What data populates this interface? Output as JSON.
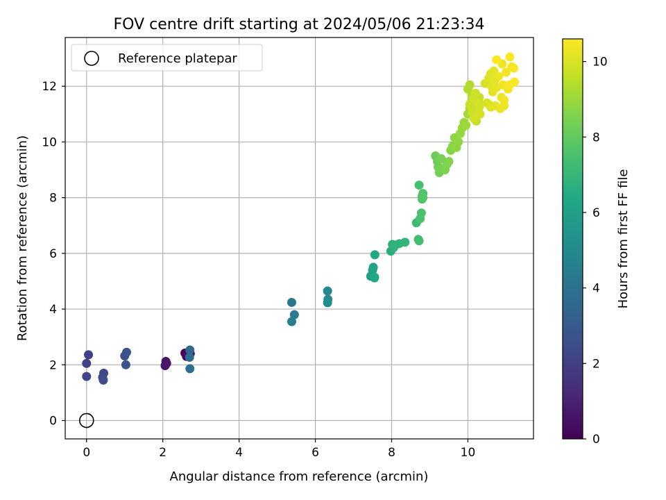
{
  "chart_data": {
    "type": "scatter",
    "title": "FOV centre drift starting at 2024/05/06 21:23:34",
    "xlabel": "Angular distance from reference (arcmin)",
    "ylabel": "Rotation from reference (arcmin)",
    "xlim": [
      -0.56,
      11.72
    ],
    "ylim": [
      -0.66,
      13.75
    ],
    "xticks": [
      0,
      2,
      4,
      6,
      8,
      10
    ],
    "yticks": [
      0,
      2,
      4,
      6,
      8,
      10,
      12
    ],
    "grid": true,
    "legend": {
      "position": "upper-left",
      "entries": [
        "Reference platepar"
      ]
    },
    "colorbar": {
      "label": "Hours from first FF file",
      "colormap": "viridis",
      "range": [
        0,
        10.6
      ],
      "ticks": [
        0,
        2,
        4,
        6,
        8,
        10
      ]
    },
    "reference_point": {
      "x": 0,
      "y": 0,
      "label": "Reference platepar"
    },
    "series": [
      {
        "x": [
          2.58,
          2.62,
          2.6,
          2.68,
          2.72,
          2.08,
          2.06,
          2.1,
          0.05,
          0.0,
          0.0,
          0.45,
          0.42,
          0.44,
          1.0,
          1.05,
          1.03,
          2.71,
          2.7,
          2.71
        ],
        "y": [
          2.42,
          2.3,
          2.4,
          2.3,
          2.4,
          2.12,
          1.97,
          2.05,
          2.36,
          2.05,
          1.58,
          1.7,
          1.55,
          1.45,
          2.32,
          2.45,
          2.0,
          2.53,
          2.27,
          1.86
        ],
        "c": [
          0.1,
          0.15,
          0.2,
          0.3,
          0.4,
          0.5,
          0.6,
          0.7,
          2.0,
          2.1,
          2.2,
          2.3,
          2.4,
          2.5,
          2.6,
          2.7,
          2.8,
          3.6,
          3.7,
          3.8
        ]
      },
      {
        "x": [
          5.38,
          5.45,
          5.38,
          6.32,
          6.33,
          6.32,
          7.45,
          7.5,
          7.52,
          7.55,
          7.55,
          7.56
        ],
        "y": [
          4.24,
          3.8,
          3.55,
          4.65,
          4.35,
          4.23,
          5.18,
          5.4,
          5.5,
          5.12,
          5.15,
          5.95
        ],
        "c": [
          4.3,
          4.4,
          4.5,
          4.9,
          5.0,
          5.1,
          5.9,
          6.0,
          6.1,
          6.2,
          6.3,
          6.35
        ]
      },
      {
        "x": [
          7.98,
          8.02,
          8.05,
          8.1,
          8.2,
          8.35,
          8.65,
          8.7,
          8.72,
          8.72,
          8.75,
          8.78,
          8.8,
          8.8,
          8.82,
          8.82
        ],
        "y": [
          6.08,
          6.32,
          6.2,
          6.3,
          6.35,
          6.4,
          7.1,
          6.5,
          6.45,
          8.45,
          7.25,
          7.45,
          7.95,
          8.05,
          8.15,
          8.0
        ],
        "c": [
          6.6,
          6.7,
          6.75,
          6.8,
          6.85,
          6.9,
          7.2,
          7.3,
          7.35,
          7.4,
          7.5,
          7.55,
          7.6,
          7.65,
          7.7,
          7.75
        ]
      },
      {
        "x": [
          9.15,
          9.2,
          9.22,
          9.25,
          9.3,
          9.35,
          9.4,
          9.45,
          9.5,
          9.55,
          9.6,
          9.65,
          9.7,
          9.75,
          9.8,
          9.85,
          9.9,
          9.95,
          10.0,
          10.05
        ],
        "y": [
          9.5,
          9.3,
          9.1,
          8.9,
          9.4,
          9.05,
          9.0,
          9.2,
          9.3,
          9.7,
          9.85,
          10.15,
          9.8,
          10.0,
          10.3,
          10.5,
          10.7,
          10.6,
          11.0,
          11.2
        ],
        "c": [
          8.2,
          8.25,
          8.3,
          8.35,
          8.4,
          8.45,
          8.5,
          8.55,
          8.6,
          8.65,
          8.7,
          8.75,
          8.8,
          8.85,
          8.9,
          8.95,
          9.0,
          9.05,
          9.1,
          9.15
        ]
      },
      {
        "x": [
          10.0,
          10.05,
          10.1,
          10.12,
          10.15,
          10.18,
          10.2,
          10.22,
          10.25,
          10.28,
          10.3,
          10.05,
          10.1,
          10.12,
          10.15,
          10.2,
          10.25,
          10.3,
          10.32,
          10.15
        ],
        "y": [
          11.9,
          12.05,
          11.7,
          11.5,
          11.3,
          11.1,
          10.9,
          10.75,
          11.0,
          11.45,
          11.6,
          11.35,
          11.2,
          11.05,
          11.55,
          11.75,
          11.4,
          11.25,
          11.0,
          10.85
        ],
        "c": [
          9.3,
          9.35,
          9.4,
          9.45,
          9.5,
          9.55,
          9.6,
          9.62,
          9.65,
          9.68,
          9.7,
          9.72,
          9.75,
          9.78,
          9.8,
          9.82,
          9.85,
          9.88,
          9.9,
          9.92
        ]
      },
      {
        "x": [
          10.45,
          10.5,
          10.55,
          10.6,
          10.62,
          10.65,
          10.68,
          10.7,
          10.72,
          10.75,
          10.8,
          10.85,
          10.88,
          10.9,
          10.92,
          10.95,
          11.0,
          11.05,
          11.1,
          11.15,
          11.2,
          11.22,
          10.55,
          10.75,
          10.95,
          11.1,
          10.6
        ],
        "y": [
          12.1,
          11.4,
          12.3,
          12.45,
          12.0,
          11.8,
          12.55,
          12.2,
          11.3,
          11.95,
          12.35,
          11.2,
          11.6,
          12.8,
          12.05,
          11.5,
          12.5,
          11.9,
          12.05,
          12.7,
          12.65,
          12.15,
          11.35,
          12.95,
          11.3,
          13.05,
          11.25
        ],
        "c": [
          9.95,
          10.0,
          10.05,
          10.1,
          10.12,
          10.15,
          10.18,
          10.2,
          10.22,
          10.25,
          10.28,
          10.3,
          10.32,
          10.35,
          10.38,
          10.4,
          10.42,
          10.45,
          10.48,
          10.5,
          10.52,
          10.55,
          10.05,
          10.58,
          10.3,
          10.6,
          10.1
        ]
      }
    ]
  }
}
